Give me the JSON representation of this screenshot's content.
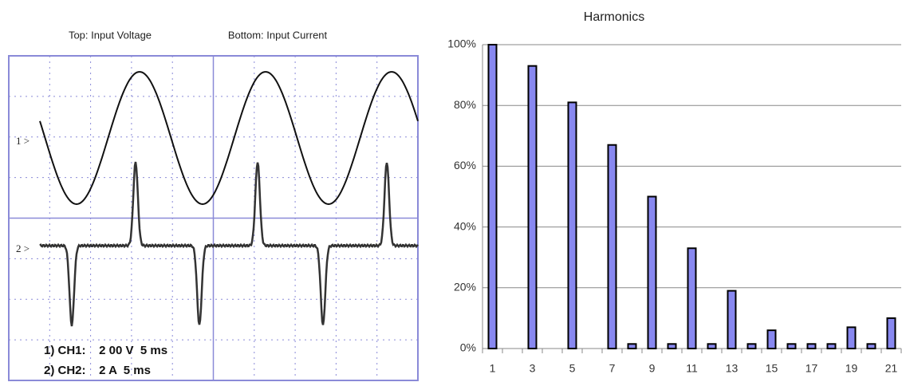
{
  "scope": {
    "top_label": "Top: Input Voltage",
    "bottom_label": "Bottom: Input Current",
    "marker_1": "1 >",
    "marker_2": "2 >",
    "ch1": "1) CH1:    2 00 V  5 ms",
    "ch2": "2) CH2:    2 A  5 ms"
  },
  "chart_data": {
    "type": "bar",
    "title": "Harmonics",
    "categories": [
      "1",
      null,
      "3",
      null,
      "5",
      null,
      "7",
      null,
      "9",
      null,
      "11",
      null,
      "13",
      null,
      "15",
      null,
      "17",
      null,
      "19",
      null,
      "21"
    ],
    "values": [
      100,
      null,
      93,
      null,
      81,
      null,
      67,
      1.5,
      50,
      1.5,
      33,
      1.5,
      19,
      1.5,
      6,
      1.5,
      1.5,
      1.5,
      7,
      1.5,
      10
    ],
    "color": "#8888f0",
    "ylim": [
      0,
      100
    ],
    "yticks": [
      {
        "value": 0,
        "label": "0%"
      },
      {
        "value": 20,
        "label": "20%"
      },
      {
        "value": 40,
        "label": "40%"
      },
      {
        "value": 60,
        "label": "60%"
      },
      {
        "value": 80,
        "label": "80%"
      },
      {
        "value": 100,
        "label": "100%"
      }
    ],
    "grid": true
  }
}
